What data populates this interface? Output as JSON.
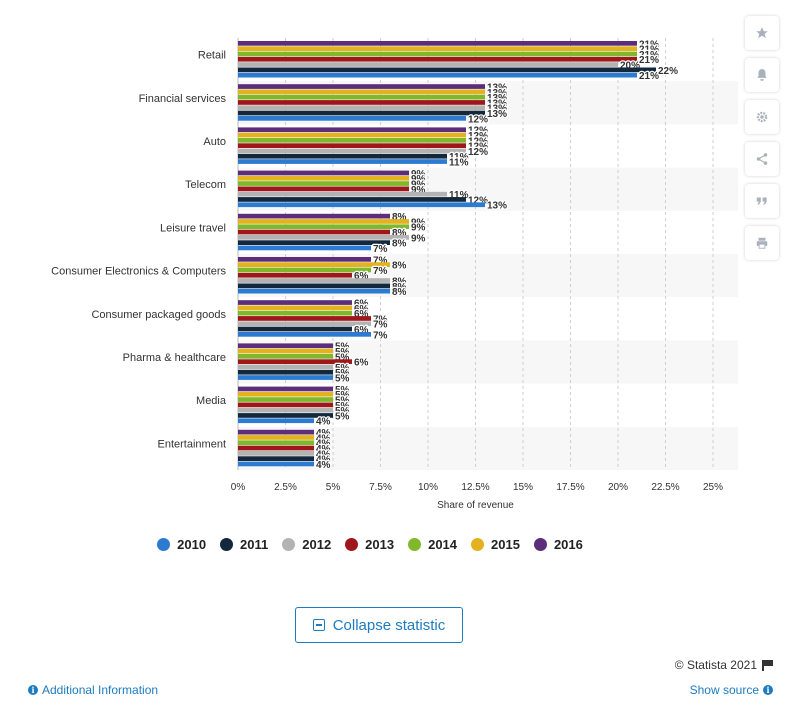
{
  "chart_data": {
    "type": "bar",
    "orientation": "horizontal",
    "categories": [
      "Retail",
      "Financial services",
      "Auto",
      "Telecom",
      "Leisure travel",
      "Consumer Electronics & Computers",
      "Consumer packaged goods",
      "Pharma & healthcare",
      "Media",
      "Entertainment"
    ],
    "series": [
      {
        "name": "2016",
        "color": "#5c2d7a",
        "values": [
          21,
          13,
          12,
          9,
          8,
          7,
          6,
          5,
          5,
          4
        ]
      },
      {
        "name": "2015",
        "color": "#e3b21f",
        "values": [
          21,
          13,
          12,
          9,
          9,
          8,
          6,
          5,
          5,
          4
        ]
      },
      {
        "name": "2014",
        "color": "#7fb92b",
        "values": [
          21,
          13,
          12,
          9,
          9,
          7,
          6,
          5,
          5,
          4
        ]
      },
      {
        "name": "2013",
        "color": "#a0171b",
        "values": [
          21,
          13,
          12,
          9,
          8,
          6,
          7,
          6,
          5,
          4
        ]
      },
      {
        "name": "2012",
        "color": "#b3b3b3",
        "values": [
          20,
          13,
          12,
          11,
          9,
          8,
          7,
          5,
          5,
          4
        ]
      },
      {
        "name": "2011",
        "color": "#13273d",
        "values": [
          22,
          13,
          11,
          12,
          8,
          8,
          6,
          5,
          5,
          4
        ]
      },
      {
        "name": "2010",
        "color": "#2c7bd0",
        "values": [
          21,
          12,
          11,
          13,
          7,
          8,
          7,
          5,
          4,
          4
        ]
      }
    ],
    "value_suffix": "%",
    "xlim": [
      0,
      25
    ],
    "xticks": [
      "0%",
      "2.5%",
      "5%",
      "7.5%",
      "10%",
      "12.5%",
      "15%",
      "17.5%",
      "20%",
      "22.5%",
      "25%"
    ],
    "xlabel": "Share of revenue",
    "grid": true,
    "legend_position": "bottom"
  },
  "legend": [
    {
      "label": "2010",
      "color": "#2c7bd0"
    },
    {
      "label": "2011",
      "color": "#13273d"
    },
    {
      "label": "2012",
      "color": "#b3b3b3"
    },
    {
      "label": "2013",
      "color": "#a0171b"
    },
    {
      "label": "2014",
      "color": "#7fb92b"
    },
    {
      "label": "2015",
      "color": "#e3b21f"
    },
    {
      "label": "2016",
      "color": "#5c2d7a"
    }
  ],
  "toolbar": {
    "icons": [
      "star-icon",
      "bell-icon",
      "gear-icon",
      "share-icon",
      "quote-icon",
      "print-icon"
    ]
  },
  "footer": {
    "collapse_label": "Collapse statistic",
    "copyright": "© Statista 2021",
    "additional_info": "Additional Information",
    "show_source": "Show source"
  }
}
